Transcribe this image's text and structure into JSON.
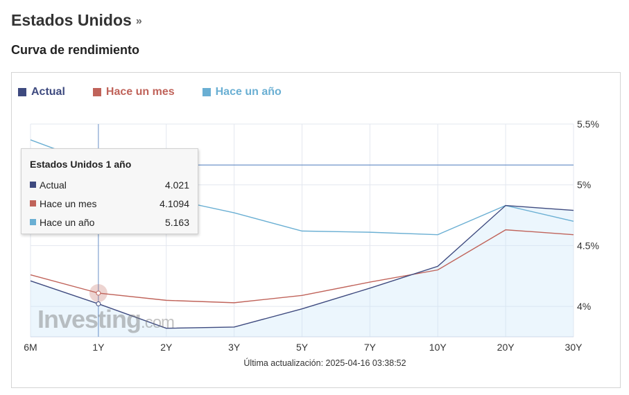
{
  "header": {
    "title": "Estados Unidos",
    "arrow": "»",
    "subtitle": "Curva de rendimiento"
  },
  "legend": [
    {
      "label": "Actual",
      "color": "#3e4a7f"
    },
    {
      "label": "Hace un mes",
      "color": "#c0635a"
    },
    {
      "label": "Hace un año",
      "color": "#6aafd3"
    }
  ],
  "tooltip": {
    "title": "Estados Unidos 1 año",
    "rows": [
      {
        "label": "Actual",
        "value": "4.021",
        "color": "#3e4a7f"
      },
      {
        "label": "Hace un mes",
        "value": "4.1094",
        "color": "#c0635a"
      },
      {
        "label": "Hace un año",
        "value": "5.163",
        "color": "#6aafd3"
      }
    ]
  },
  "watermark": {
    "brand": "Investing",
    "suffix": ".com"
  },
  "footer": {
    "updated": "Última actualización: 2025-04-16 03:38:52"
  },
  "chart_data": {
    "type": "line",
    "categories": [
      "6M",
      "1Y",
      "2Y",
      "3Y",
      "5Y",
      "7Y",
      "10Y",
      "20Y",
      "30Y"
    ],
    "y_ticks": [
      "5.5%",
      "5%",
      "4.5%",
      "4%"
    ],
    "y_tick_values": [
      5.5,
      5.0,
      4.5,
      4.0
    ],
    "ylim": [
      3.75,
      5.5
    ],
    "grid": true,
    "highlight_category": "1Y",
    "series": [
      {
        "name": "Actual",
        "color": "#3e4a7f",
        "filled": true,
        "values": [
          4.21,
          4.021,
          3.82,
          3.83,
          3.98,
          4.15,
          4.33,
          4.83,
          4.79
        ]
      },
      {
        "name": "Hace un mes",
        "color": "#c0635a",
        "values": [
          4.26,
          4.1094,
          4.05,
          4.03,
          4.09,
          4.2,
          4.3,
          4.63,
          4.59
        ]
      },
      {
        "name": "Hace un año",
        "color": "#6aafd3",
        "values": [
          5.37,
          5.163,
          4.89,
          4.77,
          4.62,
          4.61,
          4.59,
          4.83,
          4.7
        ]
      }
    ],
    "reference_line": {
      "value": 5.163,
      "color": "#6d93c9"
    }
  }
}
